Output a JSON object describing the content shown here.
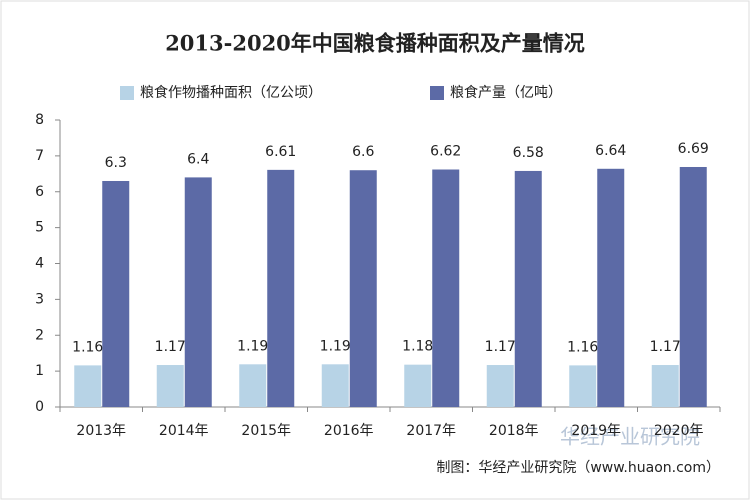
{
  "chart_data": {
    "type": "bar",
    "title": "2013-2020年中国粮食播种面积及产量情况",
    "categories": [
      "2013年",
      "2014年",
      "2015年",
      "2016年",
      "2017年",
      "2018年",
      "2019年",
      "2020年"
    ],
    "series": [
      {
        "name": "粮食作物播种面积（亿公顷）",
        "color": "#b7d3e6",
        "values": [
          1.16,
          1.17,
          1.19,
          1.19,
          1.18,
          1.17,
          1.16,
          1.17
        ]
      },
      {
        "name": "粮食产量（亿吨）",
        "color": "#5c6aa6",
        "values": [
          6.3,
          6.4,
          6.61,
          6.6,
          6.62,
          6.58,
          6.64,
          6.69
        ]
      }
    ],
    "ylim": [
      0,
      8
    ],
    "yticks": [
      0,
      1,
      2,
      3,
      4,
      5,
      6,
      7,
      8
    ],
    "source": "制图：华经产业研究院（www.huaon.com）",
    "watermark": "华经产业研究院"
  }
}
